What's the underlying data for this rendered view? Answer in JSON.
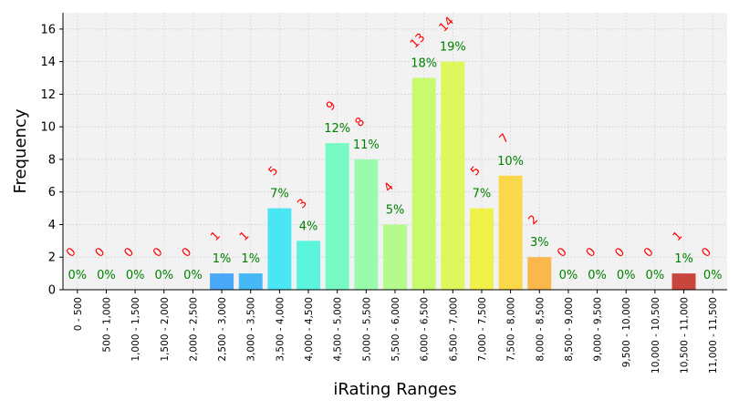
{
  "chart_data": {
    "type": "bar",
    "title": "",
    "xlabel": "iRating Ranges",
    "ylabel": "Frequency",
    "ylim": [
      0,
      17
    ],
    "yticks": [
      0,
      2,
      4,
      6,
      8,
      10,
      12,
      14,
      16
    ],
    "grid": true,
    "categories": [
      "0 - 500",
      "500 - 1,000",
      "1,000 - 1,500",
      "1,500 - 2,000",
      "2,000 - 2,500",
      "2,500 - 3,000",
      "3,000 - 3,500",
      "3,500 - 4,000",
      "4,000 - 4,500",
      "4,500 - 5,000",
      "5,000 - 5,500",
      "5,500 - 6,000",
      "6,000 - 6,500",
      "6,500 - 7,000",
      "7,000 - 7,500",
      "7,500 - 8,000",
      "8,000 - 8,500",
      "8,500 - 9,000",
      "9,000 - 9,500",
      "9,500 - 10,000",
      "10,000 - 10,500",
      "10,500 - 11,000",
      "11,000 - 11,500"
    ],
    "values": [
      0,
      0,
      0,
      0,
      0,
      1,
      1,
      5,
      3,
      9,
      8,
      4,
      13,
      14,
      5,
      7,
      2,
      0,
      0,
      0,
      0,
      1,
      0
    ],
    "percent_labels": [
      "0%",
      "0%",
      "0%",
      "0%",
      "0%",
      "1%",
      "1%",
      "7%",
      "4%",
      "12%",
      "11%",
      "5%",
      "18%",
      "19%",
      "7%",
      "10%",
      "3%",
      "0%",
      "0%",
      "0%",
      "0%",
      "1%",
      "0%"
    ],
    "colors": [
      "#6a5acd",
      "#5f6fd8",
      "#5a7ee0",
      "#5590e8",
      "#4f9ef0",
      "#4aa8f8",
      "#45b8f5",
      "#4ae6f4",
      "#5af5dc",
      "#78fac5",
      "#99fbab",
      "#b5fa8c",
      "#c8fa6e",
      "#dcf85c",
      "#f0f04a",
      "#fbd84a",
      "#fbb84a",
      "#f89848",
      "#f07844",
      "#e66040",
      "#d8503e",
      "#c8463e",
      "#b83a3a"
    ],
    "count_label_color": "#ff0000",
    "percent_label_color": "#008000",
    "plot_background": "#f2f2f2"
  }
}
